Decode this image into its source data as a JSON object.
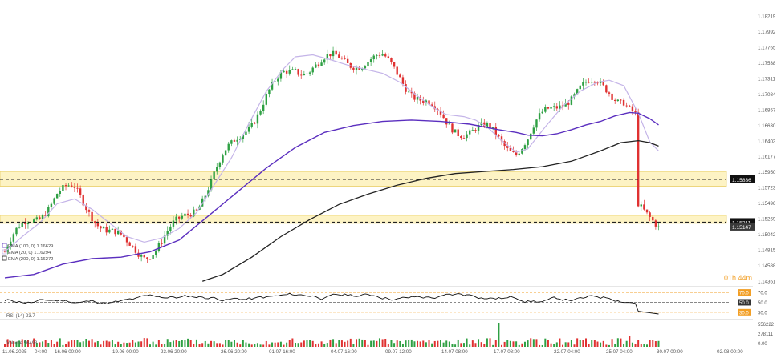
{
  "chart_data": {
    "type": "candlestick",
    "instrument_hint": "price chart with EMA, RSI and volume panes",
    "y_ticks": [
      "1.18219",
      "1.17992",
      "1.17765",
      "1.17538",
      "1.17311",
      "1.17084",
      "1.16857",
      "1.16630",
      "1.16403",
      "1.16177",
      "1.15950",
      "1.15723",
      "1.15496",
      "1.15269",
      "1.15042",
      "1.14815",
      "1.14588",
      "1.14361"
    ],
    "ylim": [
      1.14306,
      1.18274
    ],
    "x_ticks": [
      "11.06.2025",
      "04:00",
      "16.06 00:00",
      "19.06 00:00",
      "23.06 20:00",
      "26.06 20:00",
      "01.07 16:00",
      "04.07 16:00",
      "09.07 12:00",
      "14.07 08:00",
      "17.07 08:00",
      "22.07 04:00",
      "25.07 04:00",
      "30.07 00:00",
      "02.08 00:00"
    ],
    "resistance_band": {
      "low": 1.15735,
      "high": 1.1595,
      "line": 1.15836
    },
    "support_band": {
      "low": 1.15195,
      "high": 1.1531,
      "line": 1.15211
    },
    "price_labels": [
      {
        "text": "1.15836",
        "value": 1.15836
      },
      {
        "text": "1.15211",
        "value": 1.15211
      },
      {
        "text": "1.15147",
        "value": 1.15147
      }
    ],
    "countdown": "01h 44m",
    "legend": [
      {
        "text": "EMA (100, 0) 1.16629",
        "color": "#5b2fbf"
      },
      {
        "text": "EMA (20, 0) 1.16294",
        "color": "#c4b4e8"
      },
      {
        "text": "EMA (200, 0) 1.16272",
        "color": "#222222"
      }
    ],
    "ema20": [
      [
        0,
        1.1478
      ],
      [
        6,
        1.15
      ],
      [
        12,
        1.152
      ],
      [
        18,
        1.1548
      ],
      [
        24,
        1.1555
      ],
      [
        30,
        1.154
      ],
      [
        36,
        1.152
      ],
      [
        42,
        1.15
      ],
      [
        48,
        1.1492
      ],
      [
        54,
        1.1498
      ],
      [
        60,
        1.1512
      ],
      [
        66,
        1.1535
      ],
      [
        72,
        1.1575
      ],
      [
        78,
        1.1615
      ],
      [
        84,
        1.1665
      ],
      [
        90,
        1.1712
      ],
      [
        96,
        1.1745
      ],
      [
        100,
        1.1762
      ],
      [
        106,
        1.1765
      ],
      [
        112,
        1.1758
      ],
      [
        118,
        1.175
      ],
      [
        124,
        1.1744
      ],
      [
        130,
        1.1738
      ],
      [
        136,
        1.1725
      ],
      [
        142,
        1.1705
      ],
      [
        148,
        1.1687
      ],
      [
        152,
        1.1678
      ],
      [
        158,
        1.1675
      ],
      [
        162,
        1.167
      ],
      [
        166,
        1.166
      ],
      [
        171,
        1.164
      ],
      [
        176,
        1.1623
      ],
      [
        180,
        1.1628
      ],
      [
        186,
        1.166
      ],
      [
        192,
        1.169
      ],
      [
        198,
        1.1712
      ],
      [
        204,
        1.1725
      ],
      [
        208,
        1.1728
      ],
      [
        213,
        1.172
      ],
      [
        218,
        1.168
      ],
      [
        222,
        1.1638
      ],
      [
        225,
        1.1625
      ]
    ],
    "ema100": [
      [
        0,
        1.144
      ],
      [
        10,
        1.1445
      ],
      [
        20,
        1.146
      ],
      [
        30,
        1.1468
      ],
      [
        40,
        1.147
      ],
      [
        50,
        1.1478
      ],
      [
        60,
        1.1495
      ],
      [
        70,
        1.153
      ],
      [
        80,
        1.1565
      ],
      [
        90,
        1.16
      ],
      [
        100,
        1.163
      ],
      [
        110,
        1.1652
      ],
      [
        120,
        1.1662
      ],
      [
        130,
        1.1668
      ],
      [
        140,
        1.167
      ],
      [
        150,
        1.1668
      ],
      [
        160,
        1.1664
      ],
      [
        170,
        1.1656
      ],
      [
        176,
        1.1652
      ],
      [
        180,
        1.1648
      ],
      [
        185,
        1.1647
      ],
      [
        190,
        1.165
      ],
      [
        195,
        1.1656
      ],
      [
        200,
        1.1663
      ],
      [
        205,
        1.1668
      ],
      [
        210,
        1.1676
      ],
      [
        215,
        1.1681
      ],
      [
        218,
        1.168
      ],
      [
        222,
        1.1672
      ],
      [
        225,
        1.1663
      ]
    ],
    "ema200": [
      [
        68,
        1.1435
      ],
      [
        75,
        1.1445
      ],
      [
        85,
        1.147
      ],
      [
        95,
        1.15
      ],
      [
        105,
        1.1525
      ],
      [
        115,
        1.1547
      ],
      [
        125,
        1.1562
      ],
      [
        135,
        1.1575
      ],
      [
        145,
        1.1585
      ],
      [
        155,
        1.1592
      ],
      [
        165,
        1.1595
      ],
      [
        175,
        1.1598
      ],
      [
        185,
        1.1602
      ],
      [
        195,
        1.161
      ],
      [
        205,
        1.1625
      ],
      [
        212,
        1.1637
      ],
      [
        218,
        1.164
      ],
      [
        222,
        1.1637
      ],
      [
        225,
        1.1632
      ]
    ],
    "rsi": {
      "label": "RSI (14) 23.7",
      "levels": [
        "70.0",
        "50.0",
        "30.0"
      ],
      "level_values": [
        70,
        50,
        30
      ]
    },
    "volume": {
      "label": "Volume 56493",
      "ticks": [
        "556222",
        "278111",
        "0.00"
      ]
    }
  }
}
